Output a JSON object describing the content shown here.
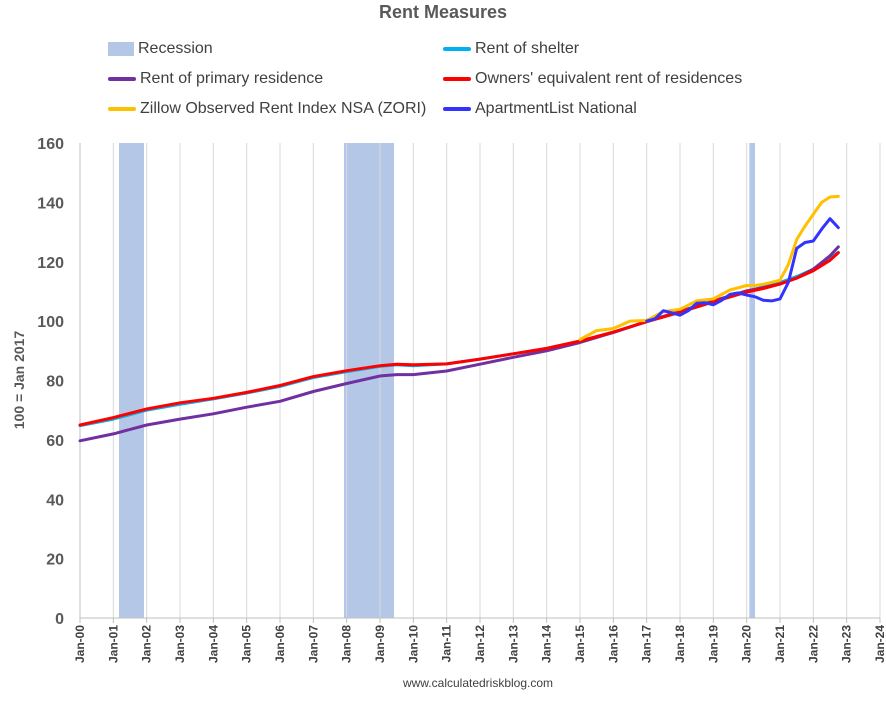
{
  "chart_data": {
    "type": "line",
    "title": "Rent Measures",
    "ylabel": "100 = Jan 2017",
    "xlabel": "",
    "ylim": [
      0,
      160
    ],
    "yticks": [
      0,
      20,
      40,
      60,
      80,
      100,
      120,
      140,
      160
    ],
    "xlim": [
      2000,
      2024
    ],
    "xtick_labels": [
      "Jan-00",
      "Jan-01",
      "Jan-02",
      "Jan-03",
      "Jan-04",
      "Jan-05",
      "Jan-06",
      "Jan-07",
      "Jan-08",
      "Jan-09",
      "Jan-10",
      "Jan-11",
      "Jan-12",
      "Jan-13",
      "Jan-14",
      "Jan-15",
      "Jan-16",
      "Jan-17",
      "Jan-18",
      "Jan-19",
      "Jan-20",
      "Jan-21",
      "Jan-22",
      "Jan-23",
      "Jan-24"
    ],
    "grid": "vertical",
    "legend_position": "top",
    "recessions": [
      {
        "start": 2001.17,
        "end": 2001.92
      },
      {
        "start": 2007.92,
        "end": 2009.42
      },
      {
        "start": 2020.08,
        "end": 2020.25
      }
    ],
    "recession_label": "Recession",
    "recession_color": "#b4c7e7",
    "series": [
      {
        "name": "Rent of shelter",
        "color": "#00b0f0",
        "x": [
          2000,
          2001,
          2002,
          2003,
          2004,
          2005,
          2006,
          2007,
          2008,
          2009,
          2009.5,
          2010,
          2011,
          2012,
          2013,
          2014,
          2015,
          2016,
          2017,
          2018,
          2019,
          2020,
          2020.5,
          2021,
          2021.5,
          2022,
          2022.5,
          2022.75
        ],
        "y": [
          64.8,
          67.0,
          70.0,
          72.0,
          73.8,
          75.8,
          78.0,
          81.0,
          83.0,
          84.8,
          85.3,
          85.0,
          85.6,
          87.2,
          89.0,
          90.8,
          93.2,
          96.2,
          99.8,
          103.0,
          106.5,
          110.0,
          111.5,
          113.0,
          115.0,
          117.5,
          121.0,
          123.2
        ]
      },
      {
        "name": "Rent of primary residence",
        "color": "#7030a0",
        "x": [
          2000,
          2001,
          2002,
          2003,
          2004,
          2005,
          2006,
          2007,
          2008,
          2009,
          2009.5,
          2010,
          2011,
          2012,
          2013,
          2014,
          2015,
          2016,
          2017,
          2018,
          2019,
          2020,
          2020.5,
          2021,
          2021.5,
          2022,
          2022.5,
          2022.75
        ],
        "y": [
          59.7,
          62.0,
          65.0,
          67.0,
          68.8,
          71.0,
          73.0,
          76.3,
          79.0,
          81.5,
          82.0,
          82.0,
          83.2,
          85.5,
          87.8,
          90.0,
          92.8,
          96.2,
          99.9,
          103.3,
          106.8,
          110.2,
          111.3,
          112.5,
          114.5,
          117.5,
          122.0,
          125.0
        ]
      },
      {
        "name": "Owners' equivalent rent of residences",
        "color": "#ff0000",
        "x": [
          2000,
          2001,
          2002,
          2003,
          2004,
          2005,
          2006,
          2007,
          2008,
          2009,
          2009.5,
          2010,
          2011,
          2012,
          2013,
          2014,
          2015,
          2016,
          2017,
          2018,
          2019,
          2020,
          2020.5,
          2021,
          2021.5,
          2022,
          2022.5,
          2022.75
        ],
        "y": [
          65.0,
          67.5,
          70.4,
          72.5,
          74.0,
          76.0,
          78.3,
          81.3,
          83.3,
          85.0,
          85.5,
          85.3,
          85.6,
          87.2,
          89.0,
          90.8,
          93.3,
          96.3,
          99.8,
          103.0,
          106.5,
          109.8,
          111.0,
          112.5,
          114.5,
          117.0,
          120.5,
          123.0
        ]
      },
      {
        "name": "Zillow Observed Rent Index NSA (ZORI)",
        "color": "#ffc000",
        "x": [
          2015,
          2015.5,
          2016,
          2016.5,
          2017,
          2017.5,
          2018,
          2018.5,
          2019,
          2019.5,
          2020,
          2020.25,
          2020.5,
          2021,
          2021.25,
          2021.5,
          2021.75,
          2022,
          2022.25,
          2022.5,
          2022.75
        ],
        "y": [
          93.8,
          96.8,
          97.5,
          100.0,
          100.2,
          103.2,
          104.0,
          106.8,
          107.5,
          110.5,
          112.0,
          112.0,
          112.4,
          113.8,
          119.0,
          127.5,
          132.0,
          136.0,
          140.0,
          141.8,
          142.0
        ]
      },
      {
        "name": "ApartmentList National",
        "color": "#3333ff",
        "x": [
          2017,
          2017.25,
          2017.5,
          2017.75,
          2018,
          2018.25,
          2018.5,
          2018.75,
          2019,
          2019.25,
          2019.5,
          2019.75,
          2020,
          2020.25,
          2020.5,
          2020.75,
          2021,
          2021.25,
          2021.5,
          2021.75,
          2022,
          2022.25,
          2022.5,
          2022.75
        ],
        "y": [
          100.0,
          100.8,
          103.5,
          102.8,
          102.0,
          103.5,
          106.0,
          106.2,
          105.5,
          107.0,
          109.0,
          109.5,
          108.8,
          108.2,
          107.0,
          106.8,
          107.5,
          113.0,
          124.5,
          126.5,
          127.0,
          131.0,
          134.5,
          131.5
        ]
      }
    ]
  },
  "source_text": "www.calculatedriskblog.com"
}
